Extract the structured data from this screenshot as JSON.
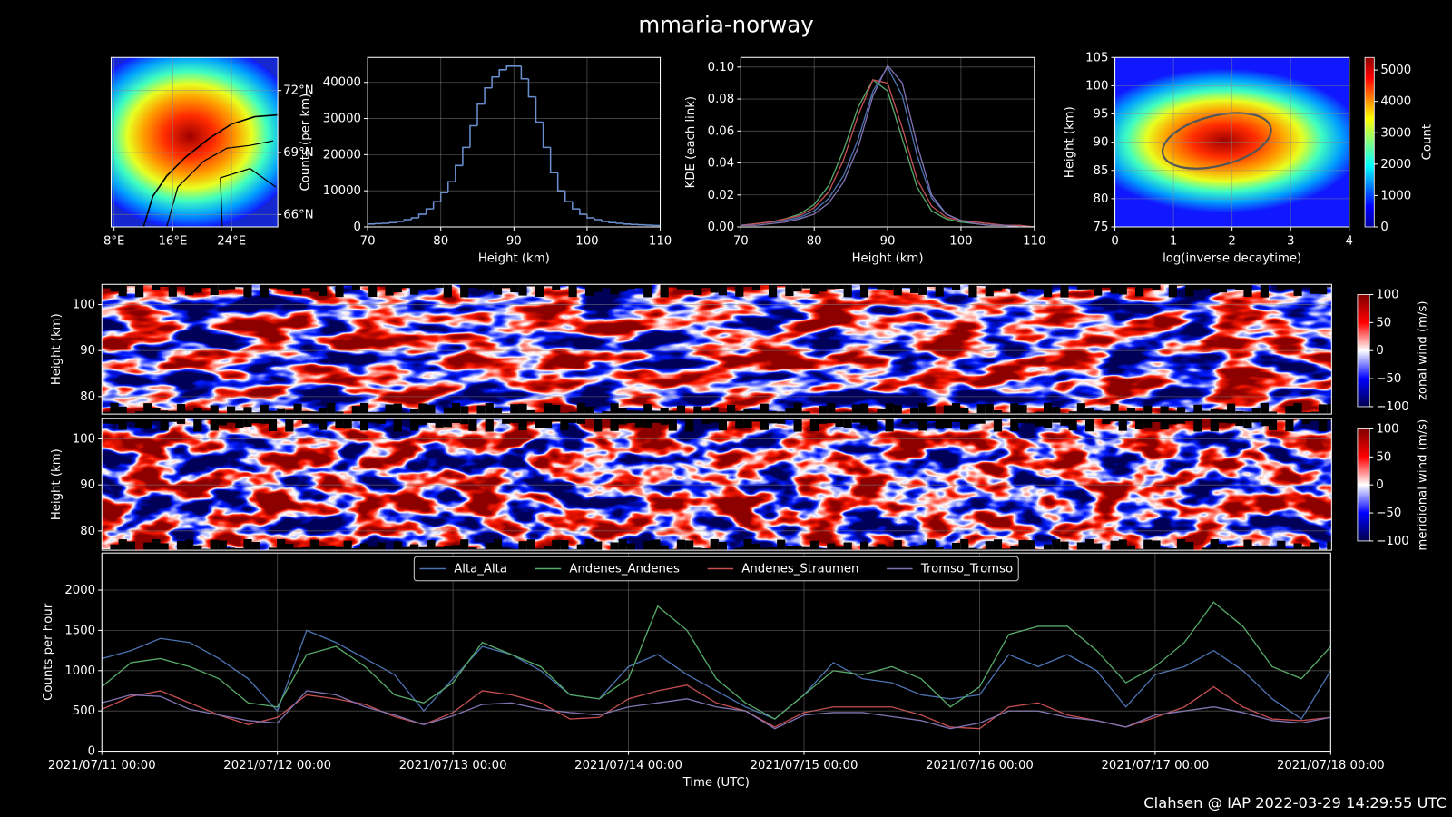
{
  "title": "mmaria-norway",
  "footer": "Clahsen @ IAP 2022-03-29 14:29:55 UTC",
  "chart_data": [
    {
      "type": "map",
      "xlim": [
        7.6,
        30.3
      ],
      "ylim": [
        65.4,
        73.6
      ],
      "xticks": [
        {
          "value": 8,
          "label": "8°E"
        },
        {
          "value": 16,
          "label": "16°E"
        },
        {
          "value": 24,
          "label": "24°E"
        }
      ],
      "yticks": [
        {
          "value": 66,
          "label": "66°N"
        },
        {
          "value": 69,
          "label": "69°N"
        },
        {
          "value": 72,
          "label": "72°N"
        }
      ],
      "grid": true,
      "ytick_side": "right"
    },
    {
      "type": "histogram",
      "xlabel": "Height (km)",
      "ylabel": "Counts (per km)",
      "bins": [
        70,
        71,
        72,
        73,
        74,
        75,
        76,
        77,
        78,
        79,
        80,
        81,
        82,
        83,
        84,
        85,
        86,
        87,
        88,
        89,
        90,
        91,
        92,
        93,
        94,
        95,
        96,
        97,
        98,
        99,
        100,
        101,
        102,
        103,
        104,
        105,
        106,
        107,
        108,
        109,
        110
      ],
      "values": [
        800,
        900,
        1000,
        1200,
        1500,
        2000,
        2500,
        3500,
        5000,
        7000,
        9500,
        12500,
        17000,
        22000,
        28000,
        34000,
        38500,
        41500,
        43500,
        44500,
        44500,
        41000,
        36000,
        29000,
        22000,
        15000,
        10000,
        7000,
        5000,
        3500,
        2500,
        2000,
        1500,
        1200,
        1000,
        800,
        700,
        600,
        500,
        400
      ],
      "color": "#6a8fd0",
      "xlim": [
        70,
        110
      ],
      "ylim": [
        0,
        46900
      ],
      "xticks": [
        70,
        80,
        90,
        100,
        110
      ],
      "yticks": [
        0,
        10000,
        20000,
        30000,
        40000
      ],
      "grid": true
    },
    {
      "type": "line",
      "xlabel": "Height (km)",
      "ylabel": "KDE (each link)",
      "x": [
        70,
        72,
        74,
        76,
        78,
        80,
        82,
        84,
        86,
        88,
        90,
        92,
        94,
        96,
        98,
        100,
        102,
        104,
        106,
        108,
        110
      ],
      "series": [
        {
          "color": "#4c72b0",
          "values": [
            0.001,
            0.002,
            0.003,
            0.004,
            0.006,
            0.01,
            0.018,
            0.032,
            0.055,
            0.085,
            0.1,
            0.082,
            0.045,
            0.018,
            0.008,
            0.004,
            0.003,
            0.002,
            0.001,
            0.001,
            0.0
          ]
        },
        {
          "color": "#55a868",
          "values": [
            0.001,
            0.002,
            0.003,
            0.005,
            0.008,
            0.014,
            0.026,
            0.048,
            0.075,
            0.092,
            0.085,
            0.055,
            0.025,
            0.01,
            0.005,
            0.003,
            0.002,
            0.001,
            0.001,
            0.0,
            0.0
          ]
        },
        {
          "color": "#c44e52",
          "values": [
            0.001,
            0.002,
            0.003,
            0.005,
            0.007,
            0.012,
            0.022,
            0.042,
            0.07,
            0.092,
            0.09,
            0.062,
            0.03,
            0.013,
            0.006,
            0.004,
            0.003,
            0.002,
            0.001,
            0.001,
            0.0
          ]
        },
        {
          "color": "#8172b2",
          "values": [
            0.001,
            0.001,
            0.002,
            0.003,
            0.005,
            0.008,
            0.015,
            0.028,
            0.05,
            0.082,
            0.101,
            0.09,
            0.052,
            0.02,
            0.008,
            0.004,
            0.002,
            0.001,
            0.001,
            0.0,
            0.0
          ]
        }
      ],
      "xlim": [
        70,
        110
      ],
      "ylim": [
        0,
        0.106
      ],
      "xticks": [
        70,
        80,
        90,
        100,
        110
      ],
      "yticks": [
        {
          "value": 0,
          "label": "0.00"
        },
        {
          "value": 0.02,
          "label": "0.02"
        },
        {
          "value": 0.04,
          "label": "0.04"
        },
        {
          "value": 0.06,
          "label": "0.06"
        },
        {
          "value": 0.08,
          "label": "0.08"
        },
        {
          "value": 0.1,
          "label": "0.10"
        }
      ],
      "grid": true
    },
    {
      "type": "heatmap",
      "xlabel": "log(inverse decaytime)",
      "ylabel": "Height (km)",
      "xlim": [
        0,
        4
      ],
      "ylim": [
        75,
        105
      ],
      "xticks": [
        0,
        1,
        2,
        3,
        4
      ],
      "yticks": [
        75,
        80,
        85,
        90,
        95,
        100,
        105
      ],
      "grid": true,
      "colormap": "jet",
      "colorbar": {
        "label": "Count",
        "lim": [
          0,
          5400
        ],
        "ticks": [
          0,
          1000,
          2000,
          3000,
          4000,
          5000
        ]
      }
    },
    {
      "type": "heatmap",
      "ylabel": "Height (km)",
      "ylim": [
        76.2,
        104.4
      ],
      "yticks": [
        80,
        90,
        100
      ],
      "grid": true,
      "colormap": "seismic",
      "colorbar": {
        "label": "zonal wind (m/s)",
        "lim": [
          -100,
          100
        ],
        "ticks": [
          {
            "value": -100,
            "label": "−100"
          },
          {
            "value": -50,
            "label": "−50"
          },
          0,
          50,
          100
        ]
      }
    },
    {
      "type": "heatmap",
      "ylabel": "Height (km)",
      "ylim": [
        75.8,
        104.4
      ],
      "yticks": [
        80,
        90,
        100
      ],
      "grid": true,
      "colormap": "seismic",
      "colorbar": {
        "label": "meridional wind (m/s)",
        "lim": [
          -100,
          100
        ],
        "ticks": [
          {
            "value": -100,
            "label": "−100"
          },
          {
            "value": -50,
            "label": "−50"
          },
          0,
          50,
          100
        ]
      }
    },
    {
      "type": "line",
      "xlabel": "Time (UTC)",
      "ylabel": "Counts per hour",
      "x": [
        "2021/07/11 00:00",
        "2021/07/11 04:00",
        "2021/07/11 08:00",
        "2021/07/11 12:00",
        "2021/07/11 16:00",
        "2021/07/11 20:00",
        "2021/07/12 00:00",
        "2021/07/12 04:00",
        "2021/07/12 08:00",
        "2021/07/12 12:00",
        "2021/07/12 16:00",
        "2021/07/12 20:00",
        "2021/07/13 00:00",
        "2021/07/13 04:00",
        "2021/07/13 08:00",
        "2021/07/13 12:00",
        "2021/07/13 16:00",
        "2021/07/13 20:00",
        "2021/07/14 00:00",
        "2021/07/14 04:00",
        "2021/07/14 08:00",
        "2021/07/14 12:00",
        "2021/07/14 16:00",
        "2021/07/14 20:00",
        "2021/07/15 00:00",
        "2021/07/15 04:00",
        "2021/07/15 08:00",
        "2021/07/15 12:00",
        "2021/07/15 16:00",
        "2021/07/15 20:00",
        "2021/07/16 00:00",
        "2021/07/16 04:00",
        "2021/07/16 08:00",
        "2021/07/16 12:00",
        "2021/07/16 16:00",
        "2021/07/16 20:00",
        "2021/07/17 00:00",
        "2021/07/17 04:00",
        "2021/07/17 08:00",
        "2021/07/17 12:00",
        "2021/07/17 16:00",
        "2021/07/17 20:00",
        "2021/07/18 00:00"
      ],
      "series": [
        {
          "name": "Alta_Alta",
          "color": "#4c72b0",
          "values": [
            1150,
            1250,
            1400,
            1350,
            1150,
            900,
            500,
            1500,
            1350,
            1150,
            950,
            500,
            900,
            1300,
            1200,
            1000,
            700,
            650,
            1050,
            1200,
            950,
            750,
            550,
            400,
            700,
            1100,
            900,
            850,
            700,
            650,
            700,
            1200,
            1050,
            1200,
            1000,
            550,
            950,
            1050,
            1250,
            1000,
            650,
            400,
            1000
          ]
        },
        {
          "name": "Andenes_Andenes",
          "color": "#55a868",
          "values": [
            800,
            1100,
            1150,
            1050,
            900,
            600,
            550,
            1200,
            1300,
            1050,
            700,
            600,
            850,
            1350,
            1200,
            1050,
            700,
            650,
            900,
            1800,
            1500,
            900,
            600,
            400,
            700,
            1000,
            950,
            1050,
            900,
            550,
            800,
            1450,
            1550,
            1550,
            1250,
            850,
            1050,
            1350,
            1850,
            1550,
            1050,
            900,
            1300
          ]
        },
        {
          "name": "Andenes_Straumen",
          "color": "#c44e52",
          "values": [
            520,
            680,
            750,
            600,
            450,
            330,
            420,
            700,
            650,
            580,
            430,
            330,
            480,
            750,
            700,
            600,
            400,
            420,
            650,
            750,
            820,
            600,
            500,
            300,
            480,
            550,
            550,
            550,
            450,
            300,
            280,
            550,
            600,
            450,
            380,
            300,
            420,
            550,
            800,
            550,
            400,
            380,
            420
          ]
        },
        {
          "name": "Tromso_Tromso",
          "color": "#8172b2",
          "values": [
            600,
            700,
            680,
            520,
            450,
            380,
            350,
            750,
            700,
            550,
            450,
            330,
            440,
            580,
            600,
            520,
            480,
            450,
            550,
            600,
            650,
            550,
            500,
            280,
            450,
            480,
            480,
            430,
            380,
            280,
            350,
            500,
            500,
            420,
            380,
            300,
            450,
            500,
            550,
            480,
            380,
            350,
            420
          ]
        }
      ],
      "xlim": [
        "2021/07/11 00:00",
        "2021/07/18 00:00"
      ],
      "xticks": [
        "2021/07/11 00:00",
        "2021/07/12 00:00",
        "2021/07/13 00:00",
        "2021/07/14 00:00",
        "2021/07/15 00:00",
        "2021/07/16 00:00",
        "2021/07/17 00:00",
        "2021/07/18 00:00"
      ],
      "ylim": [
        0,
        2460
      ],
      "yticks": [
        0,
        500,
        1000,
        1500,
        2000
      ],
      "grid": true,
      "legend": "upper center"
    }
  ]
}
